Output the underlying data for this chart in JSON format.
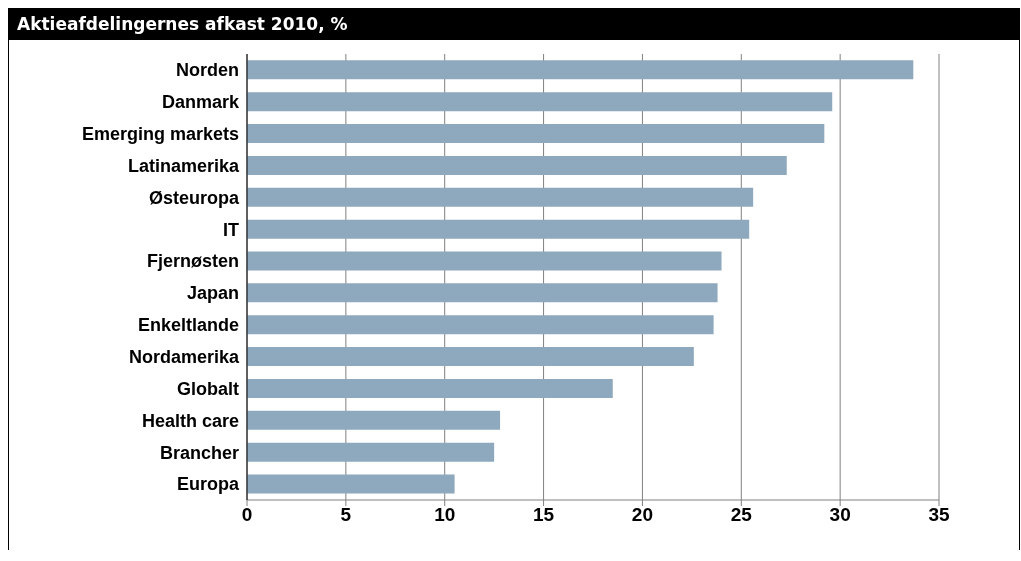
{
  "chart_data": {
    "type": "bar",
    "orientation": "horizontal",
    "title": "Aktieafdelingernes afkast 2010, %",
    "categories": [
      "Norden",
      "Danmark",
      "Emerging markets",
      "Latinamerika",
      "Østeuropa",
      "IT",
      "Fjernøsten",
      "Japan",
      "Enkeltlande",
      "Nordamerika",
      "Globalt",
      "Health care",
      "Brancher",
      "Europa"
    ],
    "values": [
      33.7,
      29.6,
      29.2,
      27.3,
      25.6,
      25.4,
      24.0,
      23.8,
      23.6,
      22.6,
      18.5,
      12.8,
      12.5,
      10.5
    ],
    "color": "#8ea8bd",
    "xlim": [
      0,
      35
    ],
    "xticks": [
      0,
      5,
      10,
      15,
      20,
      25,
      30,
      35
    ],
    "grid": "x",
    "legend": false
  }
}
